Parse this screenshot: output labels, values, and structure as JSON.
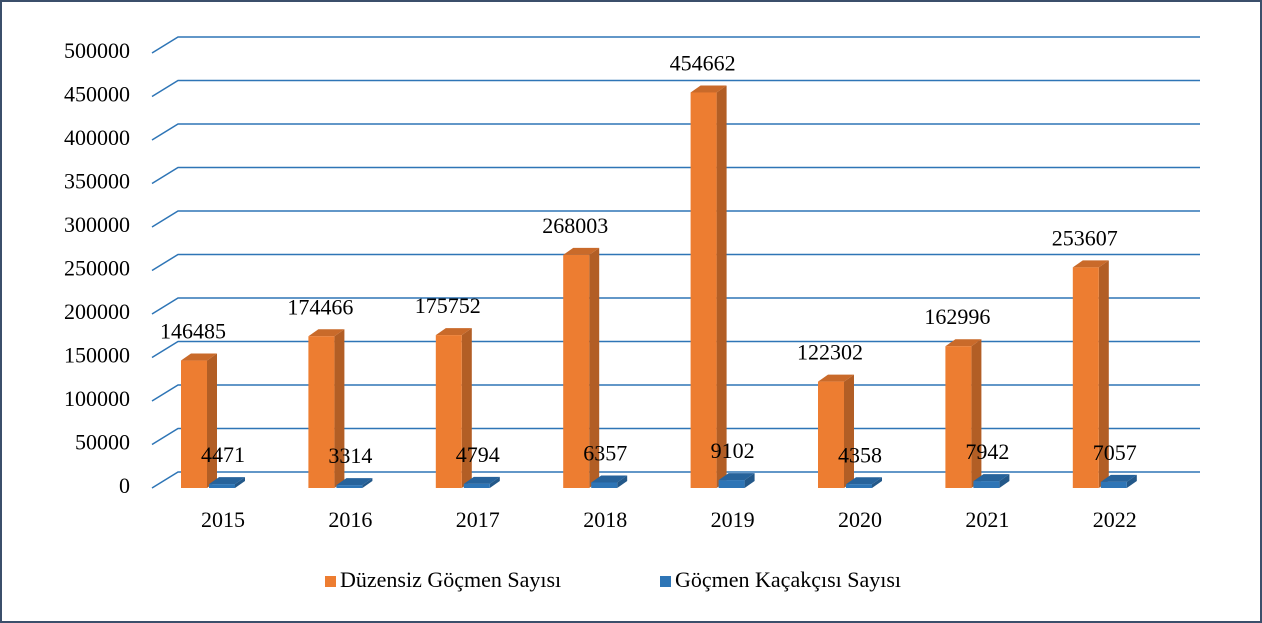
{
  "chart_data": {
    "type": "bar3d",
    "categories": [
      "2015",
      "2016",
      "2017",
      "2018",
      "2019",
      "2020",
      "2021",
      "2022"
    ],
    "series": [
      {
        "name": "Düzensiz Göçmen Sayısı",
        "color": "#ED7D31",
        "values": [
          146485,
          174466,
          175752,
          268003,
          454662,
          122302,
          162996,
          253607
        ]
      },
      {
        "name": "Göçmen Kaçakçısı Sayısı",
        "color": "#2E75B6",
        "values": [
          4471,
          3314,
          4794,
          6357,
          9102,
          4358,
          7942,
          7057
        ]
      }
    ],
    "ylim": [
      0,
      500000
    ],
    "yticks": [
      0,
      50000,
      100000,
      150000,
      200000,
      250000,
      300000,
      350000,
      400000,
      450000,
      500000
    ],
    "grid": true,
    "legend": "bottom"
  }
}
